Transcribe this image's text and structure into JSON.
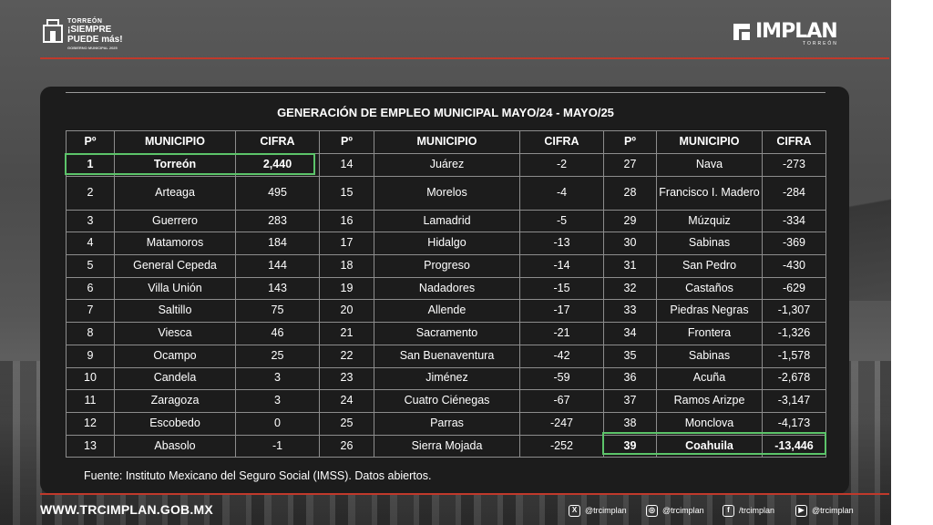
{
  "header": {
    "left_logo": {
      "line1": "TORREÓN",
      "line2": "¡SIEMPRE",
      "line3": "PUEDE más!",
      "line4": "GOBIERNO MUNICIPAL 2025"
    },
    "right_logo": {
      "name": "IMPLAN",
      "sub": "TORREÓN"
    }
  },
  "table": {
    "title": "GENERACIÓN DE EMPLEO MUNICIPAL MAYO/24 - MAYO/25",
    "headers": [
      "Pº",
      "MUNICIPIO",
      "CIFRA",
      "Pº",
      "MUNICIPIO",
      "CIFRA",
      "Pº",
      "MUNICIPIO",
      "CIFRA"
    ],
    "rows": [
      {
        "c1": [
          "1",
          "Torreón",
          "2,440"
        ],
        "c2": [
          "14",
          "Juárez",
          "-2"
        ],
        "c3": [
          "27",
          "Nava",
          "-273"
        ]
      },
      {
        "c1": [
          "2",
          "Arteaga",
          "495"
        ],
        "c2": [
          "15",
          "Morelos",
          "-4"
        ],
        "c3": [
          "28",
          "Francisco I. Madero",
          "-284"
        ]
      },
      {
        "c1": [
          "3",
          "Guerrero",
          "283"
        ],
        "c2": [
          "16",
          "Lamadrid",
          "-5"
        ],
        "c3": [
          "29",
          "Múzquiz",
          "-334"
        ]
      },
      {
        "c1": [
          "4",
          "Matamoros",
          "184"
        ],
        "c2": [
          "17",
          "Hidalgo",
          "-13"
        ],
        "c3": [
          "30",
          "Sabinas",
          "-369"
        ]
      },
      {
        "c1": [
          "5",
          "General Cepeda",
          "144"
        ],
        "c2": [
          "18",
          "Progreso",
          "-14"
        ],
        "c3": [
          "31",
          "San Pedro",
          "-430"
        ]
      },
      {
        "c1": [
          "6",
          "Villa Unión",
          "143"
        ],
        "c2": [
          "19",
          "Nadadores",
          "-15"
        ],
        "c3": [
          "32",
          "Castaños",
          "-629"
        ]
      },
      {
        "c1": [
          "7",
          "Saltillo",
          "75"
        ],
        "c2": [
          "20",
          "Allende",
          "-17"
        ],
        "c3": [
          "33",
          "Piedras Negras",
          "-1,307"
        ]
      },
      {
        "c1": [
          "8",
          "Viesca",
          "46"
        ],
        "c2": [
          "21",
          "Sacramento",
          "-21"
        ],
        "c3": [
          "34",
          "Frontera",
          "-1,326"
        ]
      },
      {
        "c1": [
          "9",
          "Ocampo",
          "25"
        ],
        "c2": [
          "22",
          "San Buenaventura",
          "-42"
        ],
        "c3": [
          "35",
          "Sabinas",
          "-1,578"
        ]
      },
      {
        "c1": [
          "10",
          "Candela",
          "3"
        ],
        "c2": [
          "23",
          "Jiménez",
          "-59"
        ],
        "c3": [
          "36",
          "Acuña",
          "-2,678"
        ]
      },
      {
        "c1": [
          "11",
          "Zaragoza",
          "3"
        ],
        "c2": [
          "24",
          "Cuatro Ciénegas",
          "-67"
        ],
        "c3": [
          "37",
          "Ramos Arizpe",
          "-3,147"
        ]
      },
      {
        "c1": [
          "12",
          "Escobedo",
          "0"
        ],
        "c2": [
          "25",
          "Parras",
          "-247"
        ],
        "c3": [
          "38",
          "Monclova",
          "-4,173"
        ]
      },
      {
        "c1": [
          "13",
          "Abasolo",
          "-1"
        ],
        "c2": [
          "26",
          "Sierra Mojada",
          "-252"
        ],
        "c3": [
          "39",
          "Coahuila",
          "-13,446"
        ]
      }
    ],
    "highlight_color": "#5cc46a"
  },
  "source": "Fuente: Instituto Mexicano del Seguro Social (IMSS). Datos abiertos.",
  "footer": {
    "website": "WWW.TRCIMPLAN.GOB.MX",
    "social": [
      {
        "icon": "x-icon",
        "glyph": "X",
        "handle": "@trcimplan"
      },
      {
        "icon": "instagram-icon",
        "glyph": "◎",
        "handle": "@trcimplan"
      },
      {
        "icon": "facebook-icon",
        "glyph": "f",
        "handle": "/trcimplan"
      },
      {
        "icon": "youtube-icon",
        "glyph": "▶",
        "handle": "@trcimplan"
      }
    ]
  },
  "accent_color": "#c0392b"
}
